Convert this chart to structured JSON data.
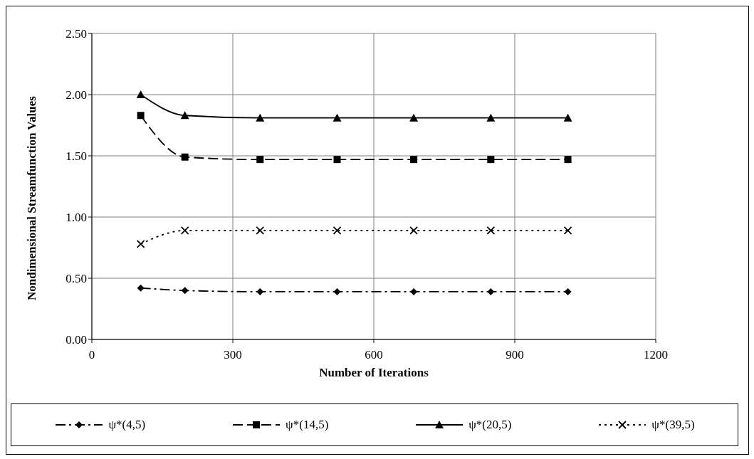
{
  "chart_data": {
    "type": "line",
    "xlabel": "Number of Iterations",
    "ylabel": "Nondimensional Streamfunction Values",
    "x": [
      104,
      198,
      358,
      522,
      685,
      849,
      1013
    ],
    "xlim": [
      0,
      1200
    ],
    "xticks": [
      0,
      300,
      600,
      900,
      1200
    ],
    "ylim": [
      0,
      2.5
    ],
    "yticks": [
      {
        "value": 0,
        "label": "0.00"
      },
      {
        "value": 0.5,
        "label": "0.50"
      },
      {
        "value": 1,
        "label": "1.00"
      },
      {
        "value": 1.5,
        "label": "1.50"
      },
      {
        "value": 2,
        "label": "2.00"
      },
      {
        "value": 2.5,
        "label": "2.50"
      }
    ],
    "grid": true,
    "legend": "bottom",
    "series": [
      {
        "name": "ψ*(4,5)",
        "color": "#000000",
        "marker": "diamond",
        "line_style": "dashdot",
        "values": [
          0.42,
          0.4,
          0.39,
          0.39,
          0.39,
          0.39,
          0.39
        ]
      },
      {
        "name": "ψ*(14,5)",
        "color": "#000000",
        "marker": "square",
        "line_style": "dashed",
        "values": [
          1.83,
          1.49,
          1.47,
          1.47,
          1.47,
          1.47,
          1.47
        ]
      },
      {
        "name": "ψ*(20,5)",
        "color": "#000000",
        "marker": "triangle",
        "line_style": "solid",
        "values": [
          2.0,
          1.83,
          1.81,
          1.81,
          1.81,
          1.81,
          1.81
        ]
      },
      {
        "name": "ψ*(39,5)",
        "color": "#000000",
        "marker": "cross",
        "line_style": "dotted",
        "values": [
          0.78,
          0.89,
          0.89,
          0.89,
          0.89,
          0.89,
          0.89
        ]
      }
    ]
  }
}
